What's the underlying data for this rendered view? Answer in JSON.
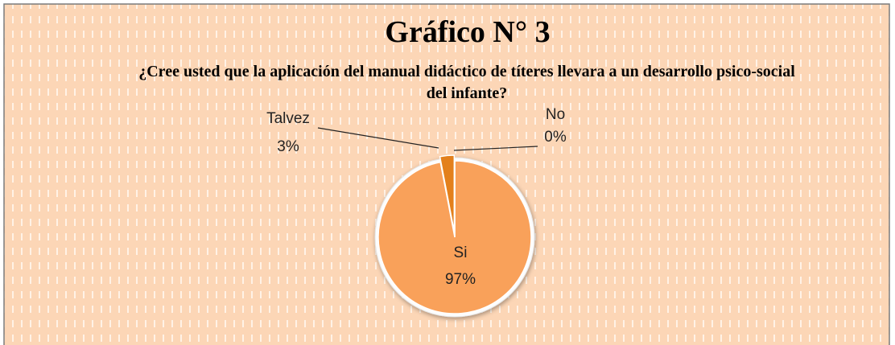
{
  "chart_data": {
    "type": "pie",
    "title": "Gráfico N° 3",
    "subtitle": "¿Cree usted que la aplicación del manual didáctico de títeres llevara a un desarrollo psico-social del infante?",
    "categories": [
      "Si",
      "Talvez",
      "No"
    ],
    "values": [
      97,
      3,
      0
    ],
    "value_labels": [
      "97%",
      "3%",
      "0%"
    ],
    "colors": [
      "#f9a15a",
      "#e3801c",
      "#c96a10"
    ]
  }
}
